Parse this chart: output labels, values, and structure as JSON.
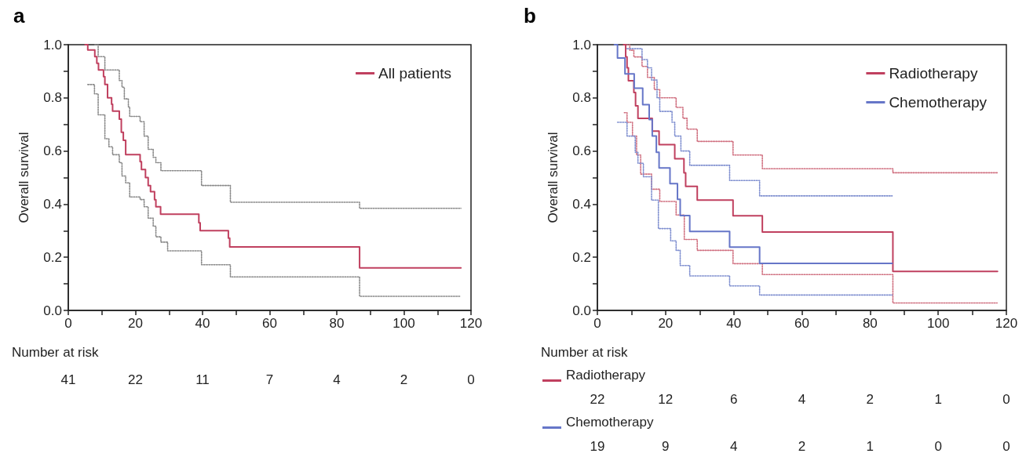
{
  "chart_data": [
    {
      "type": "step",
      "title": "a",
      "ylabel": "Overall survival",
      "xlim": [
        0,
        120
      ],
      "ylim": [
        0,
        1
      ],
      "xticks": [
        0,
        {
          "value": 10,
          "label": null
        },
        20,
        {
          "value": 30,
          "label": null
        },
        40,
        {
          "value": 50,
          "label": null
        },
        60,
        {
          "value": 70,
          "label": null
        },
        80,
        {
          "value": 90,
          "label": null
        },
        100,
        {
          "value": 110,
          "label": null
        },
        120
      ],
      "yticks": [
        {
          "value": 0,
          "label": "0.0"
        },
        {
          "value": 0.1,
          "label": null
        },
        {
          "value": 0.2,
          "label": "0.2"
        },
        {
          "value": 0.3,
          "label": null
        },
        {
          "value": 0.4,
          "label": "0.4"
        },
        {
          "value": 0.5,
          "label": null
        },
        {
          "value": 0.6,
          "label": "0.6"
        },
        {
          "value": 0.7,
          "label": null
        },
        {
          "value": 0.8,
          "label": "0.8"
        },
        {
          "value": 0.9,
          "label": null
        },
        {
          "value": 1,
          "label": "1.0"
        }
      ],
      "legend": "top right",
      "marker": "none",
      "series": [
        {
          "name": "All patients",
          "color": "#c0405f",
          "x": [
            5,
            5.8,
            7.9,
            8.5,
            9.0,
            10.5,
            10.9,
            11.7,
            12.9,
            13.2,
            15.2,
            15.8,
            16.4,
            17.1,
            17.9,
            21.4,
            21.8,
            23.0,
            23.8,
            24.5,
            25.7,
            26.1,
            27.5,
            29.6,
            38.9,
            39.3,
            39.7,
            47.7,
            48.1,
            48.5,
            86.8,
            117
          ],
          "values": [
            1,
            0.98,
            0.955,
            0.93,
            0.905,
            0.88,
            0.85,
            0.8,
            0.776,
            0.75,
            0.72,
            0.67,
            0.64,
            0.586,
            0.586,
            0.56,
            0.53,
            0.5,
            0.47,
            0.447,
            0.417,
            0.39,
            0.362,
            0.362,
            0.33,
            0.3,
            0.3,
            0.272,
            0.239,
            0.239,
            0.16,
            0.16
          ]
        },
        {
          "color": "#8a8a8a",
          "line_style": "dotted",
          "x": [
            7.9,
            8.9,
            10.9,
            15.2,
            16.0,
            16.7,
            17.9,
            18.3,
            21.4,
            22.6,
            23.8,
            25.3,
            26.1,
            27.6,
            29.6,
            39.7,
            48.3,
            86.8,
            117
          ],
          "values": [
            1,
            0.955,
            0.905,
            0.865,
            0.84,
            0.796,
            0.766,
            0.73,
            0.71,
            0.656,
            0.606,
            0.576,
            0.556,
            0.526,
            0.526,
            0.47,
            0.407,
            0.384,
            0.384
          ]
        },
        {
          "color": "#8a8a8a",
          "line_style": "dotted",
          "x": [
            5.8,
            7.8,
            8.9,
            10.9,
            12.1,
            13.2,
            15.2,
            16.0,
            17.1,
            18.3,
            21.4,
            22.6,
            23.8,
            25.3,
            26.1,
            27.6,
            29.6,
            39.7,
            48.3,
            86.8,
            117
          ],
          "values": [
            0.85,
            0.815,
            0.736,
            0.646,
            0.616,
            0.586,
            0.556,
            0.506,
            0.48,
            0.427,
            0.417,
            0.39,
            0.347,
            0.317,
            0.277,
            0.257,
            0.224,
            0.172,
            0.126,
            0.053,
            0.053
          ]
        }
      ],
      "annotations": [
        "Number at risk",
        "41",
        "22",
        "11",
        "7",
        "4",
        "2",
        "0"
      ]
    },
    {
      "type": "step",
      "title": "b",
      "ylabel": "Overall survival",
      "xlim": [
        0,
        120
      ],
      "ylim": [
        0,
        1
      ],
      "xticks": [
        0,
        {
          "value": 10,
          "label": null
        },
        20,
        {
          "value": 30,
          "label": null
        },
        40,
        {
          "value": 50,
          "label": null
        },
        60,
        {
          "value": 70,
          "label": null
        },
        80,
        {
          "value": 90,
          "label": null
        },
        100,
        {
          "value": 110,
          "label": null
        },
        120
      ],
      "yticks": [
        {
          "value": 0,
          "label": "0.0"
        },
        {
          "value": 0.1,
          "label": null
        },
        {
          "value": 0.2,
          "label": "0.2"
        },
        {
          "value": 0.3,
          "label": null
        },
        {
          "value": 0.4,
          "label": "0.4"
        },
        {
          "value": 0.5,
          "label": null
        },
        {
          "value": 0.6,
          "label": "0.6"
        },
        {
          "value": 0.7,
          "label": null
        },
        {
          "value": 0.8,
          "label": "0.8"
        },
        {
          "value": 0.9,
          "label": null
        },
        {
          "value": 1,
          "label": "1.0"
        }
      ],
      "legend": "top right",
      "marker": "none",
      "series": [
        {
          "name": "Radiotherapy",
          "color": "#c0405f",
          "x": [
            7.7,
            8.3,
            8.7,
            9.1,
            10.7,
            11.2,
            11.9,
            16.1,
            18.1,
            22.7,
            25.4,
            25.9,
            29.3,
            39.8,
            48.4,
            86.7,
            117.4
          ],
          "values": [
            1,
            0.954,
            0.913,
            0.864,
            0.82,
            0.77,
            0.723,
            0.675,
            0.624,
            0.571,
            0.518,
            0.467,
            0.415,
            0.356,
            0.295,
            0.147,
            0.147
          ]
        },
        {
          "name": "Chemotherapy",
          "color": "#6676c8",
          "x": [
            5,
            5.9,
            8.1,
            10.8,
            13.3,
            15.2,
            16.1,
            17.3,
            18.1,
            21.3,
            23.5,
            24.3,
            27.1,
            38.8,
            47.6,
            86.5
          ],
          "values": [
            1,
            0.95,
            0.89,
            0.836,
            0.774,
            0.718,
            0.656,
            0.595,
            0.536,
            0.477,
            0.418,
            0.357,
            0.297,
            0.238,
            0.177,
            0.177
          ]
        },
        {
          "color": "#d07080",
          "line_style": "dotted",
          "x": [
            7.9,
            9.5,
            10.7,
            13.1,
            14.7,
            16.7,
            18.3,
            23.1,
            25.1,
            26.3,
            29.3,
            39.8,
            48.4,
            86.7,
            117.3
          ],
          "values": [
            1,
            0.979,
            0.954,
            0.918,
            0.877,
            0.831,
            0.8,
            0.764,
            0.723,
            0.682,
            0.636,
            0.585,
            0.533,
            0.518,
            0.518
          ]
        },
        {
          "color": "#d07080",
          "line_style": "dotted",
          "x": [
            7.9,
            8.7,
            10.3,
            11.5,
            12.7,
            15.9,
            18.3,
            23.1,
            25.5,
            29.3,
            39.8,
            48.4,
            86.7,
            117.3
          ],
          "values": [
            0.744,
            0.708,
            0.656,
            0.585,
            0.513,
            0.456,
            0.41,
            0.359,
            0.267,
            0.226,
            0.176,
            0.135,
            0.028,
            0.028
          ]
        },
        {
          "color": "#8090d0",
          "line_style": "dotted",
          "x": [
            8.7,
            13.1,
            14.7,
            15.9,
            17.5,
            18.3,
            21.9,
            22.7,
            24.5,
            27.1,
            38.8,
            47.6,
            86.5
          ],
          "values": [
            0.985,
            0.944,
            0.913,
            0.867,
            0.8,
            0.749,
            0.708,
            0.656,
            0.6,
            0.546,
            0.489,
            0.431,
            0.431
          ]
        },
        {
          "color": "#8090d0",
          "line_style": "dotted",
          "x": [
            5.9,
            8.7,
            11.1,
            11.9,
            13.5,
            15.9,
            17.9,
            21.5,
            23.1,
            24.3,
            27.1,
            38.8,
            47.6,
            86.5
          ],
          "values": [
            0.708,
            0.656,
            0.595,
            0.554,
            0.503,
            0.415,
            0.308,
            0.262,
            0.226,
            0.169,
            0.13,
            0.092,
            0.058,
            0.058
          ]
        }
      ],
      "annotations": [
        "Number at risk",
        "22",
        "12",
        "6",
        "4",
        "2",
        "1",
        "0",
        "19",
        "9",
        "4",
        "2",
        "1",
        "0",
        "0"
      ]
    }
  ]
}
